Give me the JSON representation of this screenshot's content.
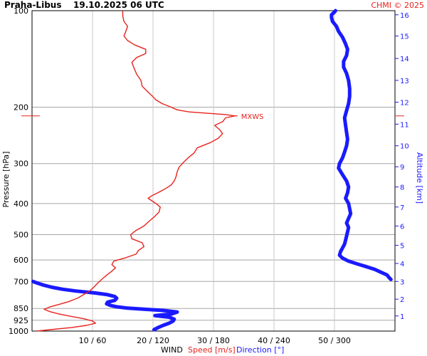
{
  "chart_data": {
    "type": "line",
    "title": "Praha-Libus",
    "subtitle": "19.10.2025 06 UTC",
    "credit": "CHMI © 2025",
    "ylabel": "Pressure [hPa]",
    "ylabel_right": "Altitude [km]",
    "xlabel": "WIND",
    "xlabel_speed": "Speed [m/s]",
    "xlabel_direction": "Direction [°]",
    "pressure_log_scale": true,
    "ylim_hpa": [
      1000,
      100
    ],
    "xlim_speed_ms": [
      0,
      60
    ],
    "xlim_direction_deg": [
      0,
      360
    ],
    "grid": true,
    "pressure_ticks": [
      "100",
      "200",
      "300",
      "400",
      "500",
      "600",
      "700",
      "850",
      "925",
      "1000"
    ],
    "pressure_tick_values": [
      100,
      200,
      300,
      400,
      500,
      600,
      700,
      850,
      925,
      1000
    ],
    "altitude_ticks": [
      "1",
      "2",
      "3",
      "4",
      "5",
      "6",
      "7",
      "8",
      "9",
      "10",
      "11",
      "12",
      "13",
      "14",
      "15",
      "16"
    ],
    "altitude_tick_pressures": [
      897,
      795,
      700,
      615,
      540,
      470,
      410,
      355,
      307,
      264,
      226,
      193,
      165,
      141,
      120,
      103
    ],
    "x_ticks": [
      "10 / 60",
      "20 / 120",
      "30 / 180",
      "40 / 240",
      "50 / 300"
    ],
    "x_tick_speeds": [
      10,
      20,
      30,
      40,
      50
    ],
    "max_wind": {
      "label": "MXWS",
      "pressure": 213,
      "speed": 33.5
    },
    "series": [
      {
        "name": "Speed [m/s]",
        "color": "#e8231d",
        "points": [
          [
            1000,
            0.8
          ],
          [
            990,
            3.0
          ],
          [
            975,
            6.5
          ],
          [
            960,
            9.0
          ],
          [
            945,
            10.5
          ],
          [
            930,
            10.0
          ],
          [
            915,
            8.5
          ],
          [
            900,
            6.5
          ],
          [
            885,
            4.5
          ],
          [
            870,
            3.0
          ],
          [
            855,
            2.0
          ],
          [
            840,
            3.0
          ],
          [
            825,
            4.5
          ],
          [
            810,
            6.0
          ],
          [
            790,
            7.5
          ],
          [
            770,
            8.5
          ],
          [
            750,
            9.5
          ],
          [
            730,
            10.2
          ],
          [
            710,
            10.8
          ],
          [
            690,
            11.5
          ],
          [
            670,
            12.3
          ],
          [
            650,
            13.2
          ],
          [
            635,
            13.8
          ],
          [
            620,
            13.2
          ],
          [
            605,
            13.5
          ],
          [
            590,
            15.5
          ],
          [
            575,
            17.2
          ],
          [
            560,
            17.6
          ],
          [
            545,
            18.5
          ],
          [
            530,
            18.2
          ],
          [
            515,
            16.5
          ],
          [
            500,
            16.3
          ],
          [
            485,
            17.2
          ],
          [
            470,
            18.5
          ],
          [
            455,
            19.3
          ],
          [
            440,
            20.2
          ],
          [
            425,
            21.0
          ],
          [
            410,
            21.2
          ],
          [
            400,
            20.5
          ],
          [
            392,
            19.8
          ],
          [
            385,
            19.2
          ],
          [
            378,
            19.8
          ],
          [
            370,
            20.8
          ],
          [
            360,
            22.0
          ],
          [
            350,
            23.0
          ],
          [
            340,
            23.5
          ],
          [
            330,
            23.8
          ],
          [
            318,
            24.0
          ],
          [
            308,
            24.3
          ],
          [
            298,
            25.0
          ],
          [
            288,
            25.8
          ],
          [
            278,
            26.8
          ],
          [
            268,
            27.3
          ],
          [
            258,
            29.5
          ],
          [
            250,
            30.8
          ],
          [
            242,
            31.5
          ],
          [
            235,
            31.0
          ],
          [
            228,
            30.2
          ],
          [
            222,
            31.5
          ],
          [
            216,
            32.0
          ],
          [
            213,
            33.5
          ],
          [
            211,
            32.0
          ],
          [
            209,
            29.0
          ],
          [
            207,
            26.0
          ],
          [
            204,
            24.0
          ],
          [
            200,
            23.0
          ],
          [
            195,
            21.5
          ],
          [
            190,
            20.5
          ],
          [
            184,
            19.8
          ],
          [
            178,
            19.0
          ],
          [
            172,
            18.2
          ],
          [
            165,
            18.0
          ],
          [
            158,
            17.3
          ],
          [
            150,
            16.8
          ],
          [
            145,
            16.5
          ],
          [
            140,
            17.3
          ],
          [
            136,
            18.8
          ],
          [
            132,
            18.8
          ],
          [
            128,
            17.0
          ],
          [
            124,
            15.8
          ],
          [
            120,
            15.2
          ],
          [
            116,
            15.5
          ],
          [
            112,
            15.8
          ],
          [
            108,
            15.2
          ],
          [
            104,
            15.0
          ],
          [
            101,
            15.0
          ],
          [
            100,
            15.0
          ]
        ]
      },
      {
        "name": "Direction [°]",
        "color": "#1a1aff",
        "points": [
          [
            990,
            121
          ],
          [
            975,
            125
          ],
          [
            960,
            130
          ],
          [
            945,
            136
          ],
          [
            930,
            140
          ],
          [
            918,
            141
          ],
          [
            905,
            136
          ],
          [
            895,
            122
          ],
          [
            885,
            138
          ],
          [
            872,
            144
          ],
          [
            862,
            130
          ],
          [
            855,
            112
          ],
          [
            848,
            95
          ],
          [
            840,
            84
          ],
          [
            832,
            78
          ],
          [
            822,
            74
          ],
          [
            812,
            75
          ],
          [
            802,
            82
          ],
          [
            790,
            84
          ],
          [
            780,
            82
          ],
          [
            770,
            75
          ],
          [
            760,
            62
          ],
          [
            750,
            44
          ],
          [
            740,
            30
          ],
          [
            730,
            20
          ],
          [
            718,
            11
          ],
          [
            706,
            4
          ],
          [
            700,
            1
          ],
          [
            690,
            356
          ],
          [
            680,
            354
          ],
          [
            668,
            352
          ],
          [
            655,
            346
          ],
          [
            642,
            340
          ],
          [
            630,
            332
          ],
          [
            618,
            323
          ],
          [
            605,
            314
          ],
          [
            592,
            308
          ],
          [
            580,
            305
          ],
          [
            565,
            306
          ],
          [
            550,
            308
          ],
          [
            535,
            310
          ],
          [
            520,
            311
          ],
          [
            505,
            312
          ],
          [
            490,
            313
          ],
          [
            475,
            314
          ],
          [
            460,
            312
          ],
          [
            445,
            314
          ],
          [
            430,
            316
          ],
          [
            415,
            315
          ],
          [
            400,
            314
          ],
          [
            385,
            311
          ],
          [
            370,
            313
          ],
          [
            355,
            314
          ],
          [
            340,
            312
          ],
          [
            325,
            308
          ],
          [
            310,
            304
          ],
          [
            300,
            305
          ],
          [
            288,
            308
          ],
          [
            276,
            310
          ],
          [
            264,
            312
          ],
          [
            252,
            313
          ],
          [
            240,
            312
          ],
          [
            228,
            311
          ],
          [
            216,
            310
          ],
          [
            205,
            312
          ],
          [
            195,
            314
          ],
          [
            185,
            315
          ],
          [
            175,
            315
          ],
          [
            165,
            314
          ],
          [
            157,
            312
          ],
          [
            150,
            309
          ],
          [
            144,
            309
          ],
          [
            138,
            312
          ],
          [
            132,
            313
          ],
          [
            127,
            311
          ],
          [
            121,
            308
          ],
          [
            116,
            304
          ],
          [
            112,
            302
          ],
          [
            108,
            298
          ],
          [
            105,
            297
          ],
          [
            103,
            297
          ],
          [
            101,
            300
          ],
          [
            100,
            301
          ]
        ]
      }
    ]
  }
}
